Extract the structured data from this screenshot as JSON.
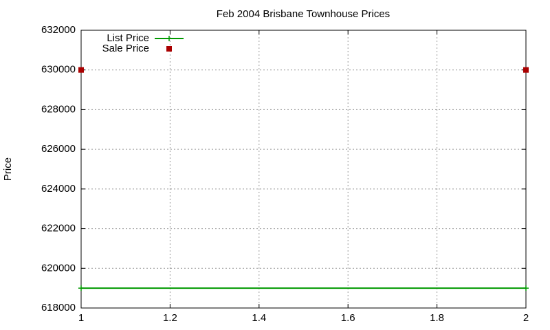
{
  "chart_data": {
    "type": "line",
    "title": "Feb 2004 Brisbane Townhouse Prices",
    "y_label": "Price",
    "x": [
      1,
      2
    ],
    "series": [
      {
        "name": "List Price",
        "color": "#009900",
        "style": "linespoints",
        "values": [
          619000,
          619000
        ]
      },
      {
        "name": "Sale Price",
        "color": "#aa0000",
        "style": "points",
        "values": [
          630000,
          630000
        ]
      }
    ],
    "xlim": [
      1,
      2
    ],
    "xticks": [
      1,
      1.2,
      1.4,
      1.6,
      1.8,
      2
    ],
    "ylim": [
      618000,
      632000
    ],
    "yticks": [
      618000,
      620000,
      622000,
      624000,
      626000,
      628000,
      630000,
      632000
    ],
    "grid": true,
    "legend": "top-left"
  }
}
